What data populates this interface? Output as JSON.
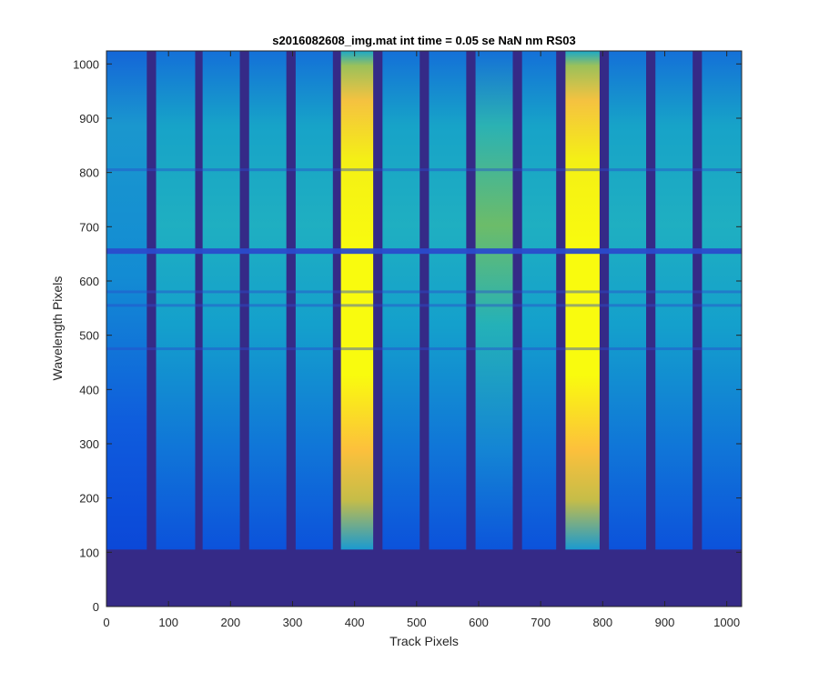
{
  "chart_data": {
    "type": "heatmap",
    "title": "s2016082608_img.mat int time = 0.05 se  NaN nm RS03",
    "xlabel": "Track Pixels",
    "ylabel": "Wavelength Pixels",
    "xlim": [
      0,
      1024
    ],
    "ylim": [
      0,
      1024
    ],
    "xticks": [
      0,
      100,
      200,
      300,
      400,
      500,
      600,
      700,
      800,
      900,
      1000
    ],
    "yticks": [
      0,
      100,
      200,
      300,
      400,
      500,
      600,
      700,
      800,
      900,
      1000
    ],
    "grid": false,
    "colormap": "parula",
    "colors": {
      "background": "#352a87",
      "blue": "#0f5cdd",
      "teal": "#1aa8c8",
      "green": "#7ebf5a",
      "yellow": "#f9fb0e",
      "orange": "#fcc03c",
      "absorption_line": "#2a4bcc"
    },
    "signal_rows_start": 105,
    "absorption_lines": [
      655,
      805,
      555,
      580,
      475
    ],
    "tracks": [
      {
        "x0": 0,
        "x1": 65,
        "level": "blue"
      },
      {
        "x0": 80,
        "x1": 143,
        "level": "teal"
      },
      {
        "x0": 155,
        "x1": 215,
        "level": "teal"
      },
      {
        "x0": 230,
        "x1": 290,
        "level": "teal"
      },
      {
        "x0": 305,
        "x1": 365,
        "level": "teal"
      },
      {
        "x0": 378,
        "x1": 430,
        "level": "yellow"
      },
      {
        "x0": 445,
        "x1": 505,
        "level": "teal"
      },
      {
        "x0": 520,
        "x1": 580,
        "level": "teal"
      },
      {
        "x0": 595,
        "x1": 655,
        "level": "green"
      },
      {
        "x0": 670,
        "x1": 725,
        "level": "teal"
      },
      {
        "x0": 740,
        "x1": 795,
        "level": "yellow"
      },
      {
        "x0": 810,
        "x1": 870,
        "level": "teal"
      },
      {
        "x0": 885,
        "x1": 945,
        "level": "teal"
      },
      {
        "x0": 960,
        "x1": 1024,
        "level": "teal"
      }
    ]
  }
}
